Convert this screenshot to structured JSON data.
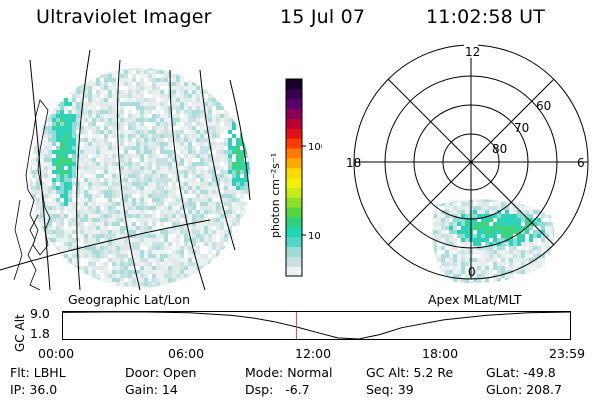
{
  "header": {
    "title": "Ultraviolet Imager",
    "date": "15 Jul 07",
    "time": "11:02:58 UT"
  },
  "geo_panel": {
    "label": "Geographic Lat/Lon"
  },
  "apex_panel": {
    "label": "Apex MLat/MLT",
    "mlt_labels": [
      "12",
      "18",
      "6",
      "0"
    ],
    "mlat_labels": [
      "60",
      "70",
      "80"
    ]
  },
  "colorbar": {
    "unit_label": "photon cm⁻²s⁻¹",
    "ticks": [
      "100",
      "10"
    ],
    "scale": "log",
    "colors": [
      "#eef2f2",
      "#c8dfe0",
      "#9fdcd8",
      "#4fd8c8",
      "#20d6b4",
      "#2ed27a",
      "#55d640",
      "#8fe02a",
      "#c8ec18",
      "#f4f000",
      "#ffd800",
      "#ffaa00",
      "#ff7a00",
      "#ff3c00",
      "#e41018",
      "#bb0038",
      "#8a0055",
      "#5a006a",
      "#3a0050",
      "#1a0026"
    ]
  },
  "altitude_plot": {
    "ylabel": "GC Alt",
    "y_ticks": [
      "9.0",
      "1.8"
    ],
    "x_ticks": [
      "00:00",
      "06:00",
      "12:00",
      "18:00",
      "23:59"
    ],
    "chart_data": {
      "type": "line",
      "x_hours": [
        0,
        2,
        4,
        6,
        8,
        9,
        10,
        11,
        12,
        13,
        14,
        15,
        16,
        18,
        20,
        22,
        24
      ],
      "y": [
        8.9,
        9.0,
        9.0,
        8.8,
        8.1,
        7.4,
        6.4,
        5.1,
        3.6,
        2.1,
        1.8,
        3.0,
        4.8,
        6.9,
        8.1,
        8.8,
        9.0
      ],
      "ylim": [
        1.8,
        9.0
      ],
      "current_hour": 11.05
    }
  },
  "status": {
    "flt": "Flt: LBHL",
    "door": "Door: Open",
    "mode": "Mode: Normal",
    "gc_alt": "GC Alt: 5.2 Re",
    "glat": "GLat: -49.8",
    "ip": "IP: 36.0",
    "gain": "Gain: 14",
    "dsp": "Dsp:   -6.7",
    "seq": "Seq: 39",
    "glon": "GLon: 208.7"
  }
}
